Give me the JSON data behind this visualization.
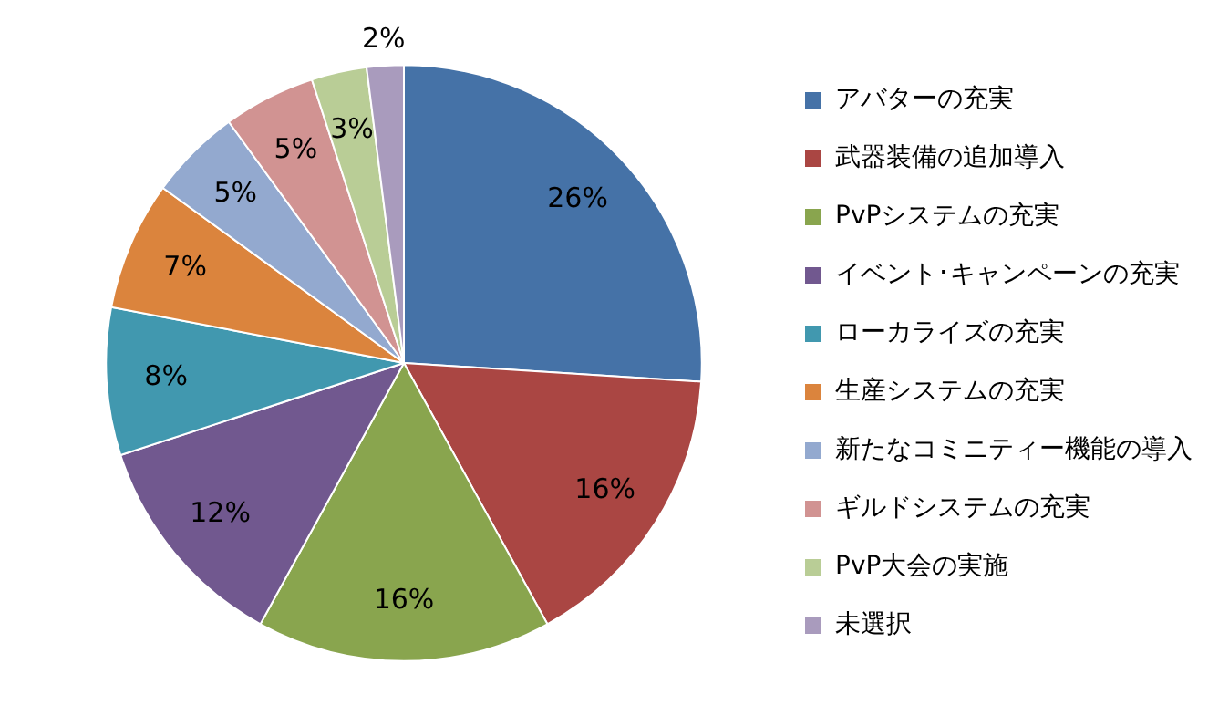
{
  "chart_data": {
    "type": "pie",
    "categories": [
      "アバターの充実",
      "武器装備の追加導入",
      "PvPシステムの充実",
      "イベント･キャンペーンの充実",
      "ローカライズの充実",
      "生産システムの充実",
      "新たなコミニティー機能の導入",
      "ギルドシステムの充実",
      "PvP大会の実施",
      "未選択"
    ],
    "values": [
      26,
      16,
      16,
      12,
      8,
      7,
      5,
      5,
      3,
      2
    ],
    "value_labels": [
      "26%",
      "16%",
      "16%",
      "12%",
      "8%",
      "7%",
      "5%",
      "5%",
      "3%",
      "2%"
    ],
    "colors": [
      "#4572a7",
      "#aa4643",
      "#89a54e",
      "#71588f",
      "#4198af",
      "#db843d",
      "#93a9cf",
      "#d19392",
      "#b9cd96",
      "#a99bbd"
    ],
    "legend": "right"
  }
}
